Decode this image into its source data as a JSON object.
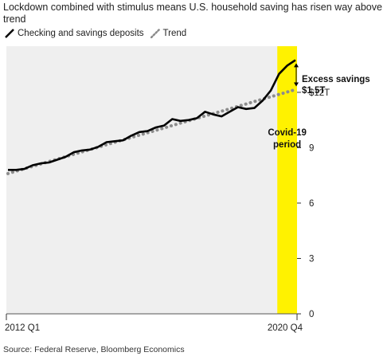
{
  "title": "Lockdown combined with stimulus means U.S. household saving has risen way above trend",
  "legend": {
    "actual_label": "Checking and savings deposits",
    "trend_label": "Trend"
  },
  "source": "Source: Federal Reserve, Bloomberg Economics",
  "colors": {
    "background": "#efefef",
    "actual": "#000000",
    "trend": "#8c8c8c",
    "highlight": "#fff200"
  },
  "chart_data": {
    "type": "line",
    "x_start_label": "2012 Q1",
    "x_end_label": "2020 Q4",
    "x_count": 36,
    "ylim": [
      0,
      14.5
    ],
    "yticks": [
      0,
      3,
      6,
      9,
      12
    ],
    "ytick_labels": [
      "0",
      "3",
      "6",
      "9",
      "$12T"
    ],
    "grid": false,
    "series": [
      {
        "name": "Checking and savings deposits",
        "values": [
          7.8,
          7.8,
          7.85,
          8.05,
          8.15,
          8.2,
          8.35,
          8.5,
          8.75,
          8.85,
          8.9,
          9.05,
          9.3,
          9.35,
          9.4,
          9.65,
          9.85,
          9.9,
          10.1,
          10.2,
          10.55,
          10.45,
          10.5,
          10.6,
          10.95,
          10.8,
          10.7,
          10.95,
          11.2,
          11.1,
          11.15,
          11.55,
          12.1,
          13.0,
          13.45,
          13.75
        ],
        "style": "solid"
      },
      {
        "name": "Trend",
        "values": [
          7.6,
          7.73,
          7.86,
          7.99,
          8.12,
          8.25,
          8.38,
          8.51,
          8.64,
          8.77,
          8.9,
          9.03,
          9.16,
          9.29,
          9.42,
          9.55,
          9.68,
          9.81,
          9.94,
          10.07,
          10.2,
          10.33,
          10.46,
          10.59,
          10.72,
          10.85,
          10.98,
          11.11,
          11.24,
          11.37,
          11.5,
          11.63,
          11.76,
          11.89,
          12.02,
          12.15
        ],
        "style": "dotted"
      }
    ],
    "highlight": {
      "start_index": 33,
      "end_index": 35,
      "label_line1": "Covid-19",
      "label_line2": "period"
    },
    "annotations": {
      "excess_line1": "Excess savings",
      "excess_line2": "$1.5T"
    }
  }
}
